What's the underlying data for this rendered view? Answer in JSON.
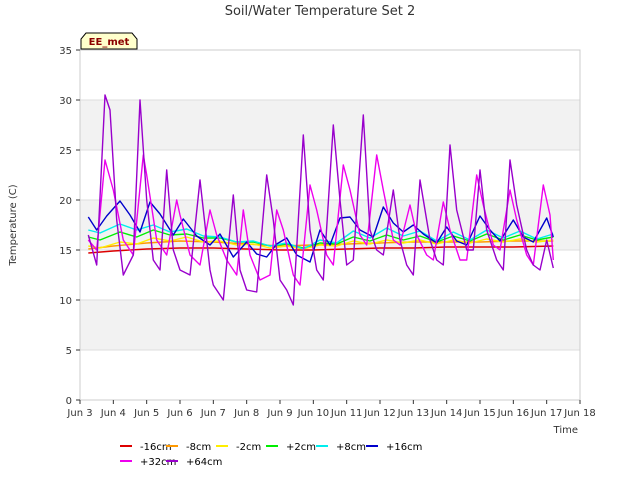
{
  "chart_data": {
    "type": "line",
    "title": "Soil/Water Temperature Set 2",
    "xlabel": "Time",
    "ylabel": "Temperature (C)",
    "badge": "EE_met",
    "ylim": [
      0,
      35
    ],
    "yticks": [
      0,
      5,
      10,
      15,
      20,
      25,
      30,
      35
    ],
    "xlim": [
      3,
      18
    ],
    "xticks": [
      3,
      4,
      5,
      6,
      7,
      8,
      9,
      10,
      11,
      12,
      13,
      14,
      15,
      16,
      17,
      18
    ],
    "xtick_labels": [
      "Jun 3",
      "Jun 4",
      "Jun 5",
      "Jun 6",
      "Jun 7",
      "Jun 8",
      "Jun 9",
      "Jun 10",
      "Jun 11",
      "Jun 12",
      "Jun 13",
      "Jun 14",
      "Jun 15",
      "Jun 16",
      "Jun 17",
      "Jun 18"
    ],
    "grid": true,
    "band_color": "#f2f2f2",
    "legend_position": "bottom",
    "series": [
      {
        "name": "-16cm",
        "color": "#dd0000",
        "x": [
          3.25,
          4,
          5,
          6,
          7,
          8,
          9,
          10,
          11,
          12,
          13,
          14,
          15,
          16,
          17.2
        ],
        "y": [
          14.7,
          14.9,
          15.1,
          15.2,
          15.2,
          15.1,
          15.0,
          15.0,
          15.1,
          15.2,
          15.2,
          15.3,
          15.3,
          15.3,
          15.4
        ]
      },
      {
        "name": "-8cm",
        "color": "#ff9900",
        "x": [
          3.25,
          4,
          5,
          6,
          7,
          8,
          9,
          10,
          11,
          12,
          13,
          14,
          15,
          16,
          17.2
        ],
        "y": [
          15.1,
          15.4,
          15.7,
          15.9,
          15.8,
          15.6,
          15.4,
          15.5,
          15.6,
          15.7,
          15.8,
          15.8,
          15.8,
          15.9,
          15.9
        ]
      },
      {
        "name": "-2cm",
        "color": "#ffee00",
        "x": [
          3.25,
          3.6,
          4.2,
          4.7,
          5.2,
          5.7,
          6.2,
          6.7,
          7.2,
          7.7,
          8.2,
          8.7,
          9.2,
          9.7,
          10.2,
          10.7,
          11.2,
          11.7,
          12.2,
          12.7,
          13.2,
          13.7,
          14.2,
          14.7,
          15.2,
          15.7,
          16.2,
          16.7,
          17.2
        ],
        "y": [
          15.4,
          15.2,
          15.8,
          15.6,
          16.2,
          15.9,
          16.3,
          15.8,
          15.9,
          15.5,
          15.6,
          15.2,
          15.4,
          15.1,
          15.5,
          15.4,
          15.9,
          15.6,
          16.0,
          15.7,
          16.0,
          15.6,
          16.0,
          15.7,
          16.1,
          15.8,
          16.1,
          15.8,
          16.0
        ]
      },
      {
        "name": "+2cm",
        "color": "#00ee00",
        "x": [
          3.25,
          3.6,
          4.2,
          4.7,
          5.2,
          5.7,
          6.2,
          6.7,
          7.2,
          7.7,
          8.2,
          8.7,
          9.2,
          9.7,
          10.2,
          10.7,
          11.2,
          11.7,
          12.2,
          12.7,
          13.2,
          13.7,
          14.2,
          14.7,
          15.2,
          15.7,
          16.2,
          16.7,
          17.2
        ],
        "y": [
          16.3,
          16.0,
          16.8,
          16.3,
          17.0,
          16.5,
          16.6,
          16.2,
          16.2,
          15.8,
          15.8,
          15.4,
          15.6,
          15.2,
          15.7,
          15.6,
          16.3,
          15.9,
          16.5,
          16.0,
          16.4,
          15.8,
          16.4,
          15.9,
          16.6,
          16.0,
          16.5,
          16.0,
          16.3
        ]
      },
      {
        "name": "+8cm",
        "color": "#00eeee",
        "x": [
          3.25,
          3.6,
          4.2,
          4.7,
          5.2,
          5.7,
          6.2,
          6.7,
          7.2,
          7.7,
          8.2,
          8.7,
          9.2,
          9.7,
          10.2,
          10.7,
          11.2,
          11.7,
          12.2,
          12.7,
          13.2,
          13.7,
          14.2,
          14.7,
          15.2,
          15.7,
          16.2,
          16.7,
          17.2
        ],
        "y": [
          17.0,
          16.7,
          17.6,
          17.0,
          17.5,
          16.8,
          17.1,
          16.4,
          16.3,
          15.8,
          15.9,
          15.4,
          15.7,
          15.1,
          16.0,
          15.7,
          16.9,
          16.2,
          17.2,
          16.4,
          16.9,
          15.9,
          16.8,
          16.0,
          17.0,
          16.2,
          16.9,
          16.1,
          16.6
        ]
      },
      {
        "name": "+16cm",
        "color": "#0000cc",
        "x": [
          3.25,
          3.5,
          3.8,
          4.2,
          4.5,
          4.8,
          5.1,
          5.4,
          5.8,
          6.1,
          6.5,
          6.9,
          7.2,
          7.6,
          8.0,
          8.3,
          8.6,
          8.9,
          9.2,
          9.5,
          9.9,
          10.2,
          10.5,
          10.8,
          11.1,
          11.4,
          11.8,
          12.1,
          12.4,
          12.7,
          13.0,
          13.3,
          13.7,
          14.0,
          14.3,
          14.6,
          15.0,
          15.3,
          15.6,
          16.0,
          16.3,
          16.6,
          17.0,
          17.2
        ],
        "y": [
          18.3,
          17.0,
          18.4,
          19.9,
          18.5,
          16.8,
          19.8,
          18.6,
          16.5,
          18.1,
          16.4,
          15.5,
          16.6,
          14.3,
          15.8,
          14.6,
          14.3,
          15.6,
          16.2,
          14.5,
          13.8,
          17.0,
          15.5,
          18.2,
          18.3,
          17.0,
          16.3,
          19.3,
          17.7,
          16.8,
          17.5,
          16.6,
          15.7,
          17.3,
          15.9,
          15.5,
          18.4,
          17.0,
          15.9,
          18.0,
          16.3,
          15.8,
          18.2,
          16.3
        ]
      },
      {
        "name": "+32cm",
        "color": "#ee00ee",
        "x": [
          3.25,
          3.5,
          3.75,
          4.0,
          4.3,
          4.6,
          4.9,
          5.0,
          5.3,
          5.6,
          5.9,
          6.0,
          6.3,
          6.6,
          6.9,
          7.1,
          7.4,
          7.7,
          7.9,
          8.1,
          8.4,
          8.7,
          8.9,
          9.1,
          9.4,
          9.6,
          9.9,
          10.1,
          10.4,
          10.6,
          10.9,
          11.1,
          11.4,
          11.6,
          11.9,
          12.1,
          12.4,
          12.6,
          12.9,
          13.1,
          13.4,
          13.6,
          13.9,
          14.1,
          14.4,
          14.6,
          14.9,
          15.1,
          15.4,
          15.6,
          15.9,
          16.1,
          16.4,
          16.6,
          16.9,
          17.1,
          17.2
        ],
        "y": [
          16.0,
          15.0,
          24.0,
          21.0,
          16.0,
          14.5,
          24.5,
          22.5,
          16.0,
          14.5,
          20.0,
          18.5,
          14.5,
          13.5,
          19.0,
          16.5,
          14.0,
          12.5,
          19.0,
          14.5,
          12.0,
          12.5,
          19.0,
          17.0,
          12.5,
          11.5,
          21.5,
          19.0,
          14.5,
          13.5,
          23.5,
          21.0,
          16.5,
          15.5,
          24.5,
          21.0,
          16.0,
          15.5,
          19.5,
          16.5,
          14.5,
          14.0,
          19.8,
          17.0,
          14.0,
          14.0,
          22.5,
          19.5,
          15.5,
          15.0,
          21.0,
          18.0,
          14.5,
          13.5,
          21.5,
          18.5,
          14.0
        ]
      },
      {
        "name": "+64cm",
        "color": "#9900cc",
        "x": [
          3.25,
          3.5,
          3.75,
          3.9,
          4.1,
          4.3,
          4.6,
          4.8,
          5.0,
          5.2,
          5.4,
          5.6,
          5.8,
          6.0,
          6.3,
          6.6,
          6.9,
          7.0,
          7.3,
          7.6,
          7.8,
          8.0,
          8.3,
          8.6,
          8.8,
          9.0,
          9.2,
          9.4,
          9.7,
          9.9,
          10.1,
          10.3,
          10.6,
          10.8,
          11.0,
          11.2,
          11.5,
          11.7,
          11.9,
          12.1,
          12.4,
          12.6,
          12.8,
          13.0,
          13.2,
          13.5,
          13.7,
          13.9,
          14.1,
          14.3,
          14.6,
          14.8,
          15.0,
          15.2,
          15.5,
          15.7,
          15.9,
          16.1,
          16.4,
          16.6,
          16.8,
          17.0,
          17.2
        ],
        "y": [
          16.5,
          13.5,
          30.5,
          29.0,
          18.0,
          12.5,
          14.5,
          30.0,
          20.0,
          14.0,
          13.0,
          23.0,
          15.0,
          13.0,
          12.5,
          22.0,
          13.0,
          11.5,
          10.0,
          20.5,
          13.0,
          11.0,
          10.8,
          22.5,
          18.0,
          12.0,
          11.0,
          9.5,
          26.5,
          17.0,
          13.0,
          12.0,
          27.5,
          20.0,
          13.5,
          14.0,
          28.5,
          17.0,
          15.0,
          14.5,
          21.0,
          16.0,
          13.5,
          12.5,
          22.0,
          16.0,
          14.0,
          13.5,
          25.5,
          19.0,
          15.0,
          15.0,
          23.0,
          17.0,
          14.0,
          13.0,
          24.0,
          19.5,
          15.0,
          13.5,
          13.0,
          16.0,
          13.2
        ]
      }
    ]
  }
}
